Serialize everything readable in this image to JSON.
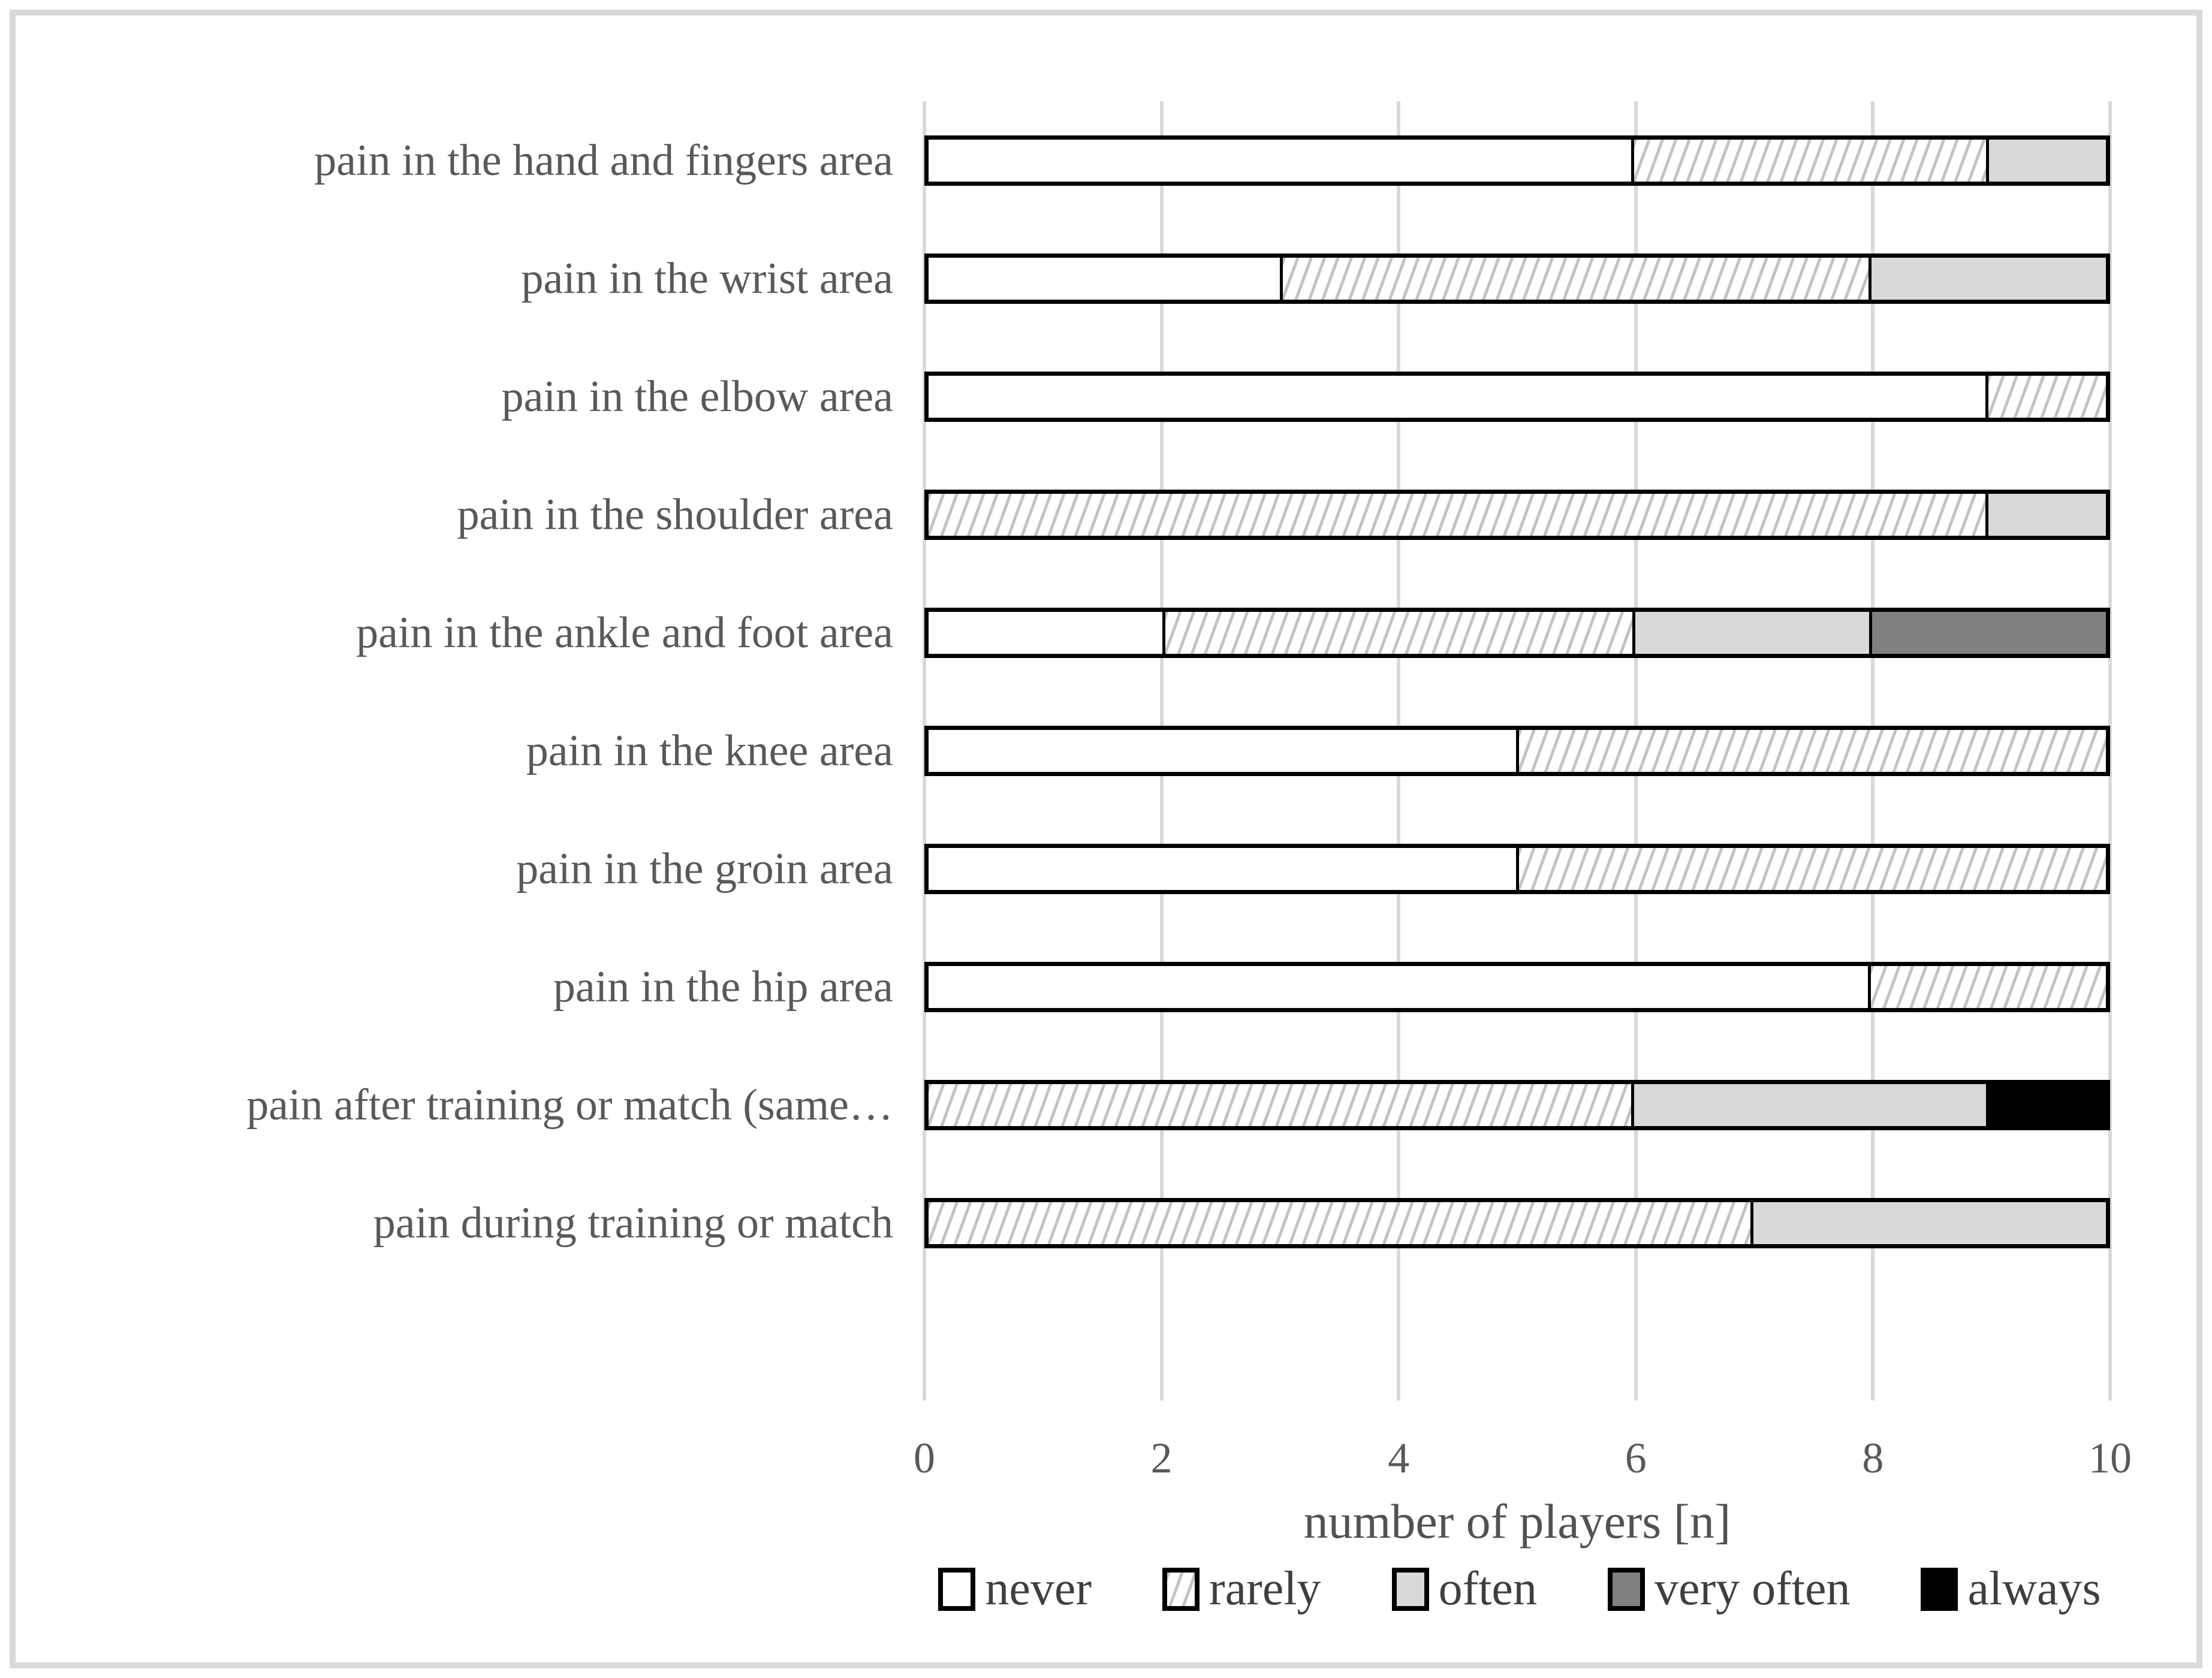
{
  "figure": {
    "background_color": "#ffffff",
    "border_color": "#d9d9d9"
  },
  "chart_data": {
    "type": "bar",
    "orientation": "horizontal",
    "stacked": true,
    "title": "",
    "xlabel": "number of players [n]",
    "ylabel": "",
    "xlim": [
      0,
      10
    ],
    "xticks": [
      0,
      2,
      4,
      6,
      8,
      10
    ],
    "grid": true,
    "legend_position": "bottom",
    "categories": [
      "pain in the hand and fingers area",
      "pain in the wrist area",
      "pain in the elbow area",
      "pain in the shoulder area",
      "pain in the ankle and foot area",
      "pain in the knee area",
      "pain in the groin area",
      "pain in the hip area",
      "pain after training or match (same…",
      "pain during training or match"
    ],
    "series": [
      {
        "name": "never",
        "color": "#ffffff",
        "pattern": "solid",
        "values": [
          6,
          3,
          9,
          0,
          2,
          5,
          5,
          8,
          0,
          0
        ]
      },
      {
        "name": "rarely",
        "color": "#ffffff",
        "pattern": "diagonal-hatch",
        "values": [
          3,
          5,
          1,
          9,
          4,
          5,
          5,
          2,
          6,
          7
        ]
      },
      {
        "name": "often",
        "color": "#d9d9d9",
        "pattern": "solid",
        "values": [
          1,
          2,
          0,
          1,
          2,
          0,
          0,
          0,
          3,
          3
        ]
      },
      {
        "name": "very often",
        "color": "#808080",
        "pattern": "solid",
        "values": [
          0,
          0,
          0,
          0,
          2,
          0,
          0,
          0,
          0,
          0
        ]
      },
      {
        "name": "always",
        "color": "#000000",
        "pattern": "solid",
        "values": [
          0,
          0,
          0,
          0,
          0,
          0,
          0,
          0,
          1,
          0
        ]
      }
    ],
    "segment_border_color": "#000000",
    "gridline_color": "#d9d9d9",
    "axis_text_color": "#595959"
  }
}
